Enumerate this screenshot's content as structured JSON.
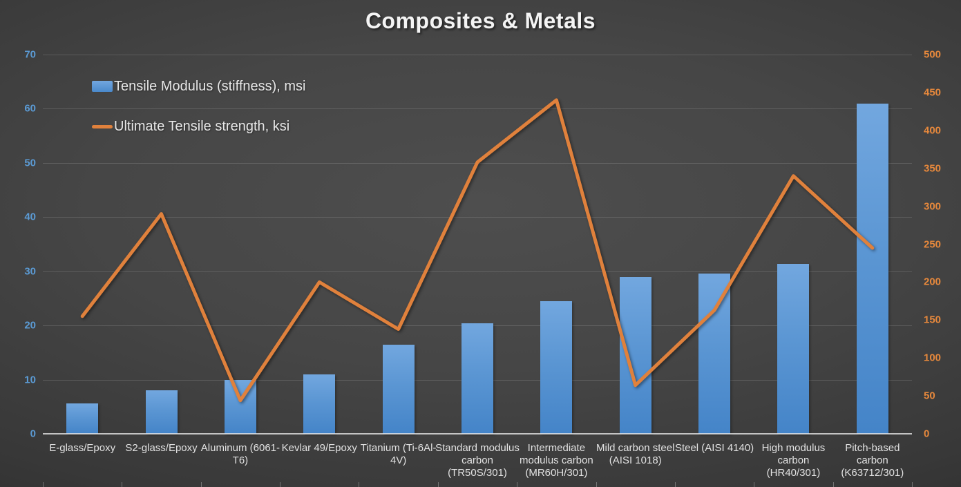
{
  "title": "Composites & Metals",
  "legend": {
    "position": "top-left-inside",
    "items": [
      {
        "label": "Tensile Modulus (stiffness), msi",
        "marker": "bar-swatch",
        "color": "#5b9bd5"
      },
      {
        "label": "Ultimate Tensile strength, ksi",
        "marker": "line-swatch",
        "color": "#e0813c"
      }
    ]
  },
  "chart_data": {
    "type": "combo",
    "subtypes": [
      "bar",
      "line"
    ],
    "categories": [
      "E-glass/Epoxy",
      "S2-glass/Epoxy",
      "Aluminum (6061-T6)",
      "Kevlar 49/Epoxy",
      "Titanium (Ti-6Al-4V)",
      "Standard modulus carbon (TR50S/301)",
      "Intermediate modulus carbon (MR60H/301)",
      "Mild carbon steel (AISI 1018)",
      "Steel (AISI 4140)",
      "High modulus carbon (HR40/301)",
      "Pitch-based carbon (K63712/301)"
    ],
    "series": [
      {
        "name": "Tensile Modulus (stiffness), msi",
        "type": "bar",
        "axis": "left",
        "unit": "msi",
        "values": [
          5.6,
          8,
          10,
          11,
          16.4,
          20.4,
          24.5,
          29,
          29.6,
          31.4,
          61
        ]
      },
      {
        "name": "Ultimate Tensile strength, ksi",
        "type": "line",
        "axis": "right",
        "unit": "ksi",
        "values": [
          155,
          290,
          44,
          200,
          138,
          358,
          440,
          64,
          163,
          340,
          245
        ]
      }
    ],
    "left_axis": {
      "min": 0,
      "max": 70,
      "step": 10,
      "tick_labels": [
        "0",
        "10",
        "20",
        "30",
        "40",
        "50",
        "60",
        "70"
      ]
    },
    "right_axis": {
      "min": 0,
      "max": 500,
      "step": 50,
      "tick_labels": [
        "0",
        "50",
        "100",
        "150",
        "200",
        "250",
        "300",
        "350",
        "400",
        "450",
        "500"
      ]
    },
    "grid": true,
    "legend_position": "top-left-inside",
    "title": "Composites & Metals"
  },
  "colors": {
    "bar_gradient_top": "#72a7df",
    "bar_gradient_bottom": "#4484c8",
    "line": "#e0813c",
    "left_axis_labels": "#5b9bd5",
    "right_axis_labels": "#e6883c",
    "category_labels": "#e2e2e2",
    "title": "#f4f4f4",
    "gridline": "rgba(255,255,255,0.14)",
    "background_center": "#4e4e4e",
    "background_edge": "#262626"
  }
}
